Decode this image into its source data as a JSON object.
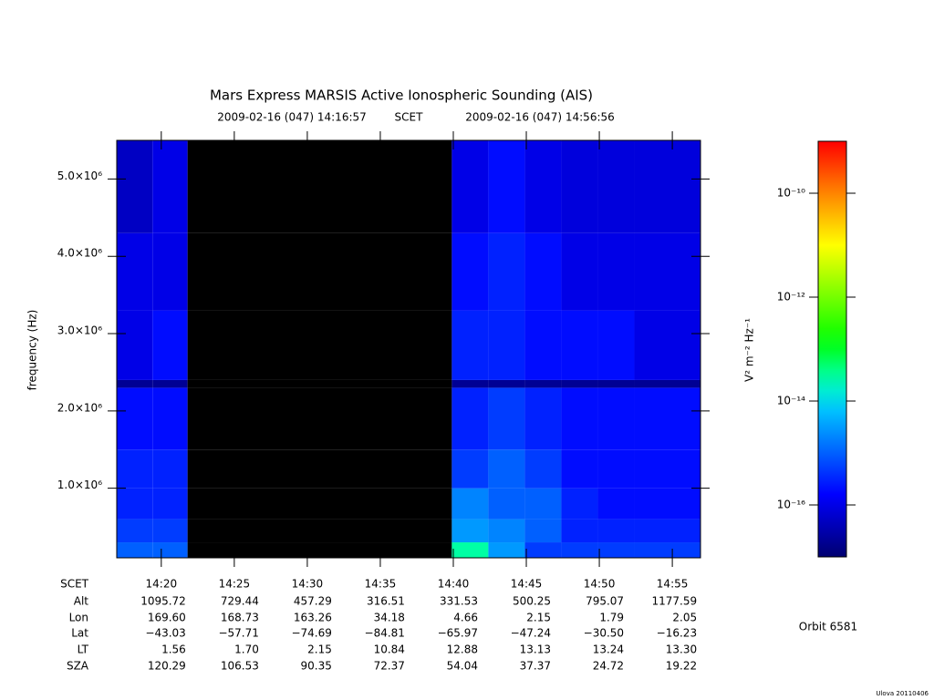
{
  "chart_data": {
    "type": "heatmap",
    "title": "Mars Express MARSIS Active Ionospheric Sounding (AIS)",
    "subtitle_start": "2009-02-16 (047) 14:16:57",
    "subtitle_mid": "SCET",
    "subtitle_end": "2009-02-16 (047) 14:56:56",
    "ylabel": "frequency (Hz)",
    "xlabel": "SCET",
    "xlim": [
      16.95,
      56.93
    ],
    "xticks": [
      {
        "value": 20,
        "label": "14:20"
      },
      {
        "value": 25,
        "label": "14:25"
      },
      {
        "value": 30,
        "label": "14:30"
      },
      {
        "value": 35,
        "label": "14:35"
      },
      {
        "value": 40,
        "label": "14:40"
      },
      {
        "value": 45,
        "label": "14:45"
      },
      {
        "value": 50,
        "label": "14:50"
      },
      {
        "value": 55,
        "label": "14:55"
      }
    ],
    "ylim": [
      100000,
      5500000
    ],
    "yticks": [
      {
        "value": 1000000,
        "label": "1.0×10⁶"
      },
      {
        "value": 2000000,
        "label": "2.0×10⁶"
      },
      {
        "value": 3000000,
        "label": "3.0×10⁶"
      },
      {
        "value": 4000000,
        "label": "4.0×10⁶"
      },
      {
        "value": 5000000,
        "label": "5.0×10⁶"
      }
    ],
    "x_bins": [
      16.95,
      19.4,
      21.8,
      39.9,
      42.4,
      44.9,
      47.4,
      49.9,
      52.4,
      54.9,
      56.93
    ],
    "y_bins": [
      100000,
      300000,
      600000,
      1000000,
      1500000,
      2300000,
      2400000,
      3300000,
      4300000,
      5500000
    ],
    "z": [
      [
        1e-15,
        1e-15,
        null,
        3e-14,
        3e-15,
        5e-16,
        5e-16,
        5e-16,
        5e-16,
        5e-16
      ],
      [
        5e-16,
        5e-16,
        null,
        3e-15,
        2e-15,
        1e-15,
        3e-16,
        3e-16,
        3e-16,
        3e-16
      ],
      [
        3e-16,
        3e-16,
        null,
        2e-15,
        1e-15,
        1e-15,
        3e-16,
        2e-16,
        2e-16,
        2e-16
      ],
      [
        3e-16,
        3e-16,
        null,
        5e-16,
        1e-15,
        5e-16,
        2e-16,
        2e-16,
        2e-16,
        2e-16
      ],
      [
        2e-16,
        2e-16,
        null,
        3e-16,
        5e-16,
        3e-16,
        2e-16,
        2e-16,
        2e-16,
        2e-16
      ],
      [
        2e-17,
        2e-17,
        null,
        2e-17,
        2e-17,
        2e-17,
        2e-17,
        2e-17,
        2e-17,
        2e-17
      ],
      [
        1e-16,
        2e-16,
        null,
        3e-16,
        3e-16,
        2e-16,
        2e-16,
        2e-16,
        1e-16,
        1e-16
      ],
      [
        1e-16,
        1e-16,
        null,
        2e-16,
        3e-16,
        2e-16,
        1e-16,
        1e-16,
        1e-16,
        1e-16
      ],
      [
        5e-17,
        1e-16,
        null,
        1e-16,
        2e-16,
        1e-16,
        8e-17,
        8e-17,
        8e-17,
        8e-17
      ]
    ],
    "zlim": [
      1e-17,
      1e-09
    ],
    "zlog": true,
    "zticks": [
      {
        "value": 1e-10,
        "label": "10⁻¹⁰"
      },
      {
        "value": 1e-12,
        "label": "10⁻¹²"
      },
      {
        "value": 1e-14,
        "label": "10⁻¹⁴"
      },
      {
        "value": 1e-16,
        "label": "10⁻¹⁶"
      }
    ],
    "zlabel": "V² m⁻² Hz⁻¹",
    "missing_color": "#000000",
    "ephemeris": [
      {
        "label": "Alt",
        "values": [
          "1095.72",
          "729.44",
          "457.29",
          "316.51",
          "331.53",
          "500.25",
          "795.07",
          "1177.59"
        ]
      },
      {
        "label": "Lon",
        "values": [
          "169.60",
          "168.73",
          "163.26",
          "34.18",
          "4.66",
          "2.15",
          "1.79",
          "2.05"
        ]
      },
      {
        "label": "Lat",
        "values": [
          "−43.03",
          "−57.71",
          "−74.69",
          "−84.81",
          "−65.97",
          "−47.24",
          "−30.50",
          "−16.23"
        ]
      },
      {
        "label": "LT",
        "values": [
          "1.56",
          "1.70",
          "2.15",
          "10.84",
          "12.88",
          "13.13",
          "13.24",
          "13.30"
        ]
      },
      {
        "label": "SZA",
        "values": [
          "120.29",
          "106.53",
          "90.35",
          "72.37",
          "54.04",
          "37.37",
          "24.72",
          "19.22"
        ]
      }
    ],
    "orbit": "Orbit 6581",
    "credit": "Ulova 20110406"
  }
}
